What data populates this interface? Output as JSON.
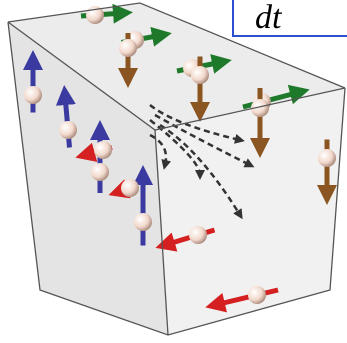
{
  "label": "dt"
}
